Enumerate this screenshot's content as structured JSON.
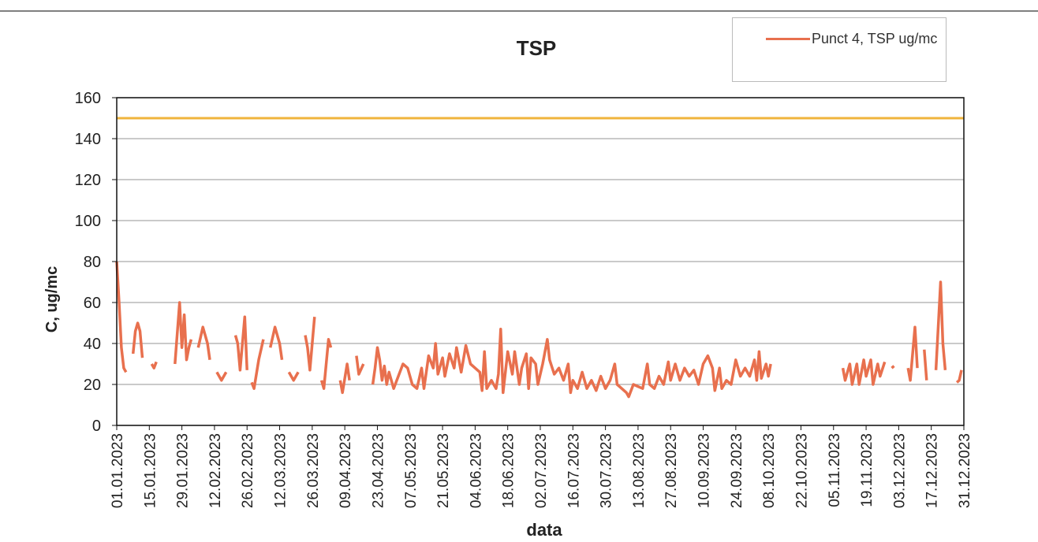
{
  "chart_data": {
    "type": "line",
    "title": "TSP",
    "x_label": "data",
    "y_label": "C, ug/mc",
    "ylim": [
      0,
      160
    ],
    "yticks": [
      0,
      20,
      40,
      60,
      80,
      100,
      120,
      140,
      160
    ],
    "xlim": [
      "01.01.2023",
      "31.12.2023"
    ],
    "xticks": [
      "01.01.2023",
      "15.01.2023",
      "29.01.2023",
      "12.02.2023",
      "26.02.2023",
      "12.03.2023",
      "26.03.2023",
      "09.04.2023",
      "23.04.2023",
      "07.05.2023",
      "21.05.2023",
      "04.06.2023",
      "18.06.2023",
      "02.07.2023",
      "16.07.2023",
      "30.07.2023",
      "13.08.2023",
      "27.08.2023",
      "10.09.2023",
      "24.09.2023",
      "08.10.2023",
      "22.10.2023",
      "05.11.2023",
      "19.11.2023",
      "03.12.2023",
      "17.12.2023",
      "31.12.2023"
    ],
    "grid": true,
    "reference_line": {
      "value": 150,
      "color": "#f0b43c"
    },
    "x": [
      "01.01.2023",
      "02.01.2023",
      "03.01.2023",
      "04.01.2023",
      "05.01.2023",
      "06.01.2023",
      "08.01.2023",
      "09.01.2023",
      "10.01.2023",
      "11.01.2023",
      "12.01.2023",
      "13.01.2023",
      "16.01.2023",
      "17.01.2023",
      "18.01.2023",
      "19.01.2023",
      "26.01.2023",
      "28.01.2023",
      "29.01.2023",
      "30.01.2023",
      "31.01.2023",
      "01.02.2023",
      "02.02.2023",
      "03.02.2023",
      "05.02.2023",
      "07.02.2023",
      "09.02.2023",
      "10.02.2023",
      "11.02.2023",
      "13.02.2023",
      "15.02.2023",
      "17.02.2023",
      "18.02.2023",
      "21.02.2023",
      "22.02.2023",
      "23.02.2023",
      "25.02.2023",
      "26.02.2023",
      "27.02.2023",
      "28.02.2023",
      "01.03.2023",
      "03.03.2023",
      "05.03.2023",
      "06.03.2023",
      "08.03.2023",
      "10.03.2023",
      "12.03.2023",
      "13.03.2023",
      "14.03.2023",
      "16.03.2023",
      "18.03.2023",
      "20.03.2023",
      "21.03.2023",
      "23.03.2023",
      "24.03.2023",
      "25.03.2023",
      "27.03.2023",
      "28.03.2023",
      "30.03.2023",
      "31.03.2023",
      "02.04.2023",
      "03.04.2023",
      "04.04.2023",
      "07.04.2023",
      "08.04.2023",
      "10.04.2023",
      "11.04.2023",
      "12.04.2023",
      "14.04.2023",
      "15.04.2023",
      "17.04.2023",
      "18.04.2023",
      "21.04.2023",
      "22.04.2023",
      "23.04.2023",
      "24.04.2023",
      "25.04.2023",
      "26.04.2023",
      "27.04.2023",
      "28.04.2023",
      "30.04.2023",
      "02.05.2023",
      "04.05.2023",
      "06.05.2023",
      "08.05.2023",
      "10.05.2023",
      "12.05.2023",
      "13.05.2023",
      "15.05.2023",
      "17.05.2023",
      "18.05.2023",
      "19.05.2023",
      "21.05.2023",
      "22.05.2023",
      "24.05.2023",
      "26.05.2023",
      "27.05.2023",
      "29.05.2023",
      "31.05.2023",
      "02.06.2023",
      "04.06.2023",
      "06.06.2023",
      "07.06.2023",
      "08.06.2023",
      "09.06.2023",
      "11.06.2023",
      "13.06.2023",
      "14.06.2023",
      "15.06.2023",
      "16.06.2023",
      "18.06.2023",
      "20.06.2023",
      "21.06.2023",
      "23.06.2023",
      "24.06.2023",
      "26.06.2023",
      "27.06.2023",
      "28.06.2023",
      "30.06.2023",
      "01.07.2023",
      "03.07.2023",
      "05.07.2023",
      "06.07.2023",
      "08.07.2023",
      "10.07.2023",
      "12.07.2023",
      "14.07.2023",
      "15.07.2023",
      "16.07.2023",
      "18.07.2023",
      "20.07.2023",
      "22.07.2023",
      "24.07.2023",
      "26.07.2023",
      "28.07.2023",
      "30.07.2023",
      "01.08.2023",
      "03.08.2023",
      "04.08.2023",
      "06.08.2023",
      "08.08.2023",
      "09.08.2023",
      "11.08.2023",
      "13.08.2023",
      "15.08.2023",
      "17.08.2023",
      "18.08.2023",
      "20.08.2023",
      "22.08.2023",
      "24.08.2023",
      "26.08.2023",
      "27.08.2023",
      "29.08.2023",
      "31.08.2023",
      "02.09.2023",
      "04.09.2023",
      "06.09.2023",
      "08.09.2023",
      "10.09.2023",
      "12.09.2023",
      "14.09.2023",
      "15.09.2023",
      "17.09.2023",
      "18.09.2023",
      "20.09.2023",
      "22.09.2023",
      "24.09.2023",
      "26.09.2023",
      "28.09.2023",
      "30.09.2023",
      "02.10.2023",
      "03.10.2023",
      "04.10.2023",
      "05.10.2023",
      "07.10.2023",
      "08.10.2023",
      "09.10.2023",
      "10.10.2023",
      "09.11.2023",
      "10.11.2023",
      "12.11.2023",
      "13.11.2023",
      "15.11.2023",
      "16.11.2023",
      "18.11.2023",
      "19.11.2023",
      "21.11.2023",
      "22.11.2023",
      "24.11.2023",
      "25.11.2023",
      "27.11.2023",
      "28.11.2023",
      "30.11.2023",
      "01.12.2023",
      "02.12.2023",
      "07.12.2023",
      "08.12.2023",
      "10.12.2023",
      "11.12.2023",
      "12.12.2023",
      "14.12.2023",
      "15.12.2023",
      "16.12.2023",
      "19.12.2023",
      "21.12.2023",
      "22.12.2023",
      "23.12.2023",
      "24.12.2023",
      "28.12.2023",
      "29.12.2023",
      "30.12.2023"
    ],
    "series": [
      {
        "name": "Punct 4, TSP ug/mc",
        "color": "#e8704e",
        "values": [
          80,
          60,
          38,
          28,
          26,
          null,
          35,
          46,
          50,
          46,
          33,
          null,
          30,
          28,
          31,
          null,
          30,
          60,
          38,
          54,
          32,
          38,
          42,
          null,
          38,
          48,
          40,
          32,
          null,
          26,
          22,
          26,
          null,
          44,
          40,
          27,
          53,
          27,
          null,
          21,
          18,
          32,
          42,
          null,
          38,
          48,
          40,
          32,
          null,
          26,
          22,
          26,
          null,
          44,
          38,
          27,
          53,
          null,
          22,
          18,
          42,
          38,
          null,
          22,
          16,
          30,
          22,
          null,
          34,
          25,
          30,
          null,
          20,
          28,
          38,
          32,
          22,
          29,
          20,
          26,
          18,
          24,
          30,
          28,
          20,
          18,
          28,
          18,
          34,
          28,
          40,
          25,
          33,
          24,
          35,
          28,
          38,
          26,
          39,
          30,
          28,
          26,
          17,
          36,
          18,
          22,
          18,
          25,
          47,
          16,
          36,
          25,
          36,
          20,
          28,
          35,
          18,
          33,
          30,
          20,
          30,
          42,
          32,
          25,
          28,
          22,
          30,
          16,
          22,
          18,
          26,
          18,
          22,
          17,
          24,
          18,
          22,
          30,
          20,
          18,
          16,
          14,
          20,
          19,
          18,
          30,
          20,
          18,
          24,
          20,
          31,
          22,
          30,
          22,
          28,
          24,
          27,
          20,
          30,
          34,
          28,
          17,
          28,
          18,
          22,
          20,
          32,
          24,
          28,
          24,
          32,
          22,
          36,
          23,
          30,
          24,
          30,
          null,
          28,
          22,
          30,
          20,
          30,
          20,
          32,
          24,
          32,
          20,
          30,
          24,
          31,
          null,
          28,
          29,
          null,
          28,
          22,
          48,
          28,
          null,
          37,
          22,
          null,
          27,
          70,
          40,
          27,
          null,
          21,
          22,
          27
        ]
      }
    ]
  }
}
